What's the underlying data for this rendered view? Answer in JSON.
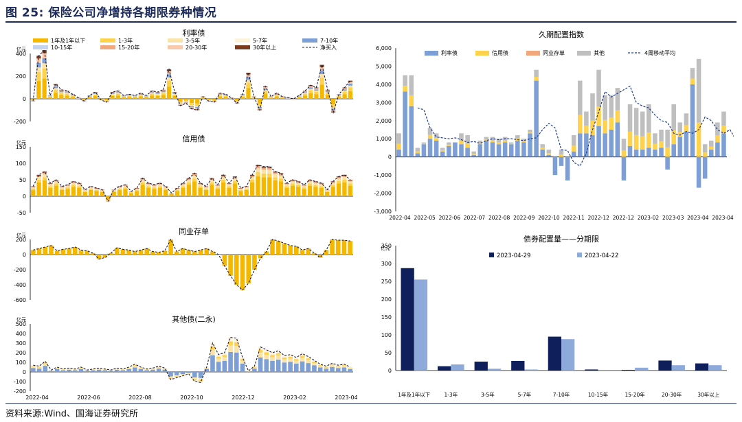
{
  "page": {
    "title": "图 25:  保险公司净增持各期限券种情况",
    "source": "资料来源:Wind、国海证券研究所"
  },
  "colors": {
    "y1": "#f5b800",
    "y1to3": "#ffd24d",
    "y3to5": "#fae3a8",
    "y5to7": "#fdf3d8",
    "y7to10": "#7d9fd6",
    "y10to15": "#c5d4ee",
    "y15to20": "#f2a67c",
    "y20to30": "#f8c9aa",
    "y30plus": "#7a3b1d",
    "net": "#1b1b3a",
    "rate": "#7d9fd6",
    "credit": "#ffd24d",
    "ncd": "#f2a67c",
    "other": "#bfbfbf",
    "ma": "#1f3a93",
    "navy": "#0f1f5c",
    "lightblue": "#8eaadb"
  },
  "chart_data": [
    {
      "id": "rate",
      "type": "bar",
      "title": "利率债",
      "unit": "亿元",
      "ylim": [
        -200,
        400
      ],
      "yticks": [
        "400",
        "200",
        "0",
        "-200"
      ],
      "legend": [
        "1年及1年以下",
        "1-3年",
        "3-5年",
        "5-7年",
        "7-10年",
        "10-15年",
        "15-20年",
        "20-30年",
        "30年以上",
        "净买入"
      ],
      "net": [
        -20,
        380,
        430,
        30,
        130,
        80,
        70,
        40,
        10,
        -20,
        30,
        60,
        -10,
        -30,
        60,
        70,
        30,
        40,
        30,
        50,
        30,
        70,
        60,
        80,
        260,
        60,
        -60,
        -40,
        -90,
        -100,
        20,
        -20,
        -30,
        50,
        40,
        10,
        -40,
        40,
        230,
        20,
        -100,
        110,
        20,
        50,
        20,
        10,
        0,
        30,
        70,
        120,
        100,
        300,
        80,
        -120,
        40,
        100,
        160
      ]
    },
    {
      "id": "credit",
      "type": "bar",
      "title": "信用债",
      "unit": "亿元",
      "ylim": [
        -50,
        150
      ],
      "yticks": [
        "150",
        "100",
        "50",
        "0",
        "-50"
      ],
      "net": [
        30,
        65,
        75,
        40,
        50,
        30,
        35,
        45,
        40,
        20,
        30,
        25,
        20,
        -15,
        20,
        30,
        35,
        15,
        25,
        55,
        40,
        35,
        40,
        30,
        10,
        25,
        40,
        55,
        70,
        40,
        30,
        55,
        35,
        65,
        40,
        60,
        25,
        30,
        65,
        95,
        90,
        90,
        75,
        70,
        40,
        50,
        45,
        35,
        50,
        45,
        40,
        20,
        45,
        60,
        65,
        50
      ]
    },
    {
      "id": "ncd",
      "type": "bar",
      "title": "同业存单",
      "unit": "亿元",
      "ylim": [
        -600,
        200
      ],
      "yticks": [
        "200",
        "0",
        "-200",
        "-400",
        "-600"
      ],
      "net": [
        60,
        80,
        100,
        120,
        50,
        70,
        80,
        100,
        60,
        50,
        20,
        -60,
        -40,
        20,
        90,
        70,
        60,
        40,
        60,
        80,
        40,
        30,
        50,
        200,
        40,
        80,
        60,
        40,
        60,
        80,
        40,
        0,
        -150,
        -280,
        -400,
        -470,
        -380,
        -200,
        -50,
        40,
        200,
        180,
        150,
        120,
        110,
        60,
        80,
        20,
        -40,
        60,
        200,
        190,
        190,
        180
      ]
    },
    {
      "id": "other",
      "type": "bar",
      "title": "其他债(二永)",
      "unit": "亿元",
      "ylim": [
        -200,
        500
      ],
      "yticks": [
        "500",
        "400",
        "300",
        "200",
        "100",
        "0",
        "-100",
        "-200"
      ],
      "xticks": [
        "2022-04",
        "2022-06",
        "2022-08",
        "2022-10",
        "2022-12",
        "2023-02",
        "2023-04"
      ],
      "net": [
        70,
        60,
        110,
        20,
        50,
        30,
        40,
        30,
        50,
        20,
        30,
        40,
        30,
        20,
        40,
        30,
        50,
        80,
        50,
        30,
        40,
        60,
        40,
        -80,
        -60,
        -40,
        -20,
        -100,
        -110,
        50,
        300,
        180,
        200,
        360,
        350,
        150,
        10,
        60,
        260,
        230,
        200,
        220,
        170,
        180,
        150,
        190,
        160,
        120,
        80,
        60,
        90,
        70,
        80,
        50
      ]
    },
    {
      "id": "duration",
      "type": "bar",
      "title": "久期配置指数",
      "ylim": [
        -3000,
        6000
      ],
      "yticks": [
        "6,000",
        "5,000",
        "4,000",
        "3,000",
        "2,000",
        "1,000",
        "0",
        "-1,000",
        "-2,000",
        "-3,000"
      ],
      "legend": [
        "利率债",
        "信用债",
        "同业存单",
        "其他",
        "4周移动平均"
      ],
      "xticks": [
        "2022-04",
        "2022-05",
        "2022-06",
        "2022-07",
        "2022-08",
        "2022-09",
        "2022-10",
        "2022-11",
        "2022-12",
        "2022-12",
        "2023-02",
        "2023-03",
        "2023-04",
        "2023-04"
      ],
      "ma": [
        null,
        null,
        null,
        2700,
        2600,
        1600,
        1100,
        1050,
        1000,
        1050,
        950,
        800,
        850,
        750,
        900,
        1000,
        950,
        1000,
        1000,
        950,
        900,
        1000,
        1050,
        1500,
        1850,
        1600,
        400,
        350,
        -300,
        -500,
        200,
        1500,
        2500,
        3600,
        3300,
        3500,
        3700,
        3900,
        3000,
        2800,
        2700,
        2300,
        2000,
        1900,
        1300,
        1200,
        1400,
        1300,
        1500,
        2200,
        2000,
        1500,
        1300,
        1500,
        900
      ],
      "totals": [
        1300,
        4500,
        4500,
        500,
        800,
        1600,
        1300,
        500,
        800,
        800,
        1300,
        1200,
        300,
        900,
        1100,
        1100,
        1000,
        1100,
        800,
        1200,
        1000,
        1500,
        4800,
        700,
        400,
        -1000,
        400,
        -1500,
        1200,
        4200,
        2500,
        3500,
        4800,
        3400,
        3400,
        3800,
        1000,
        2900,
        2700,
        2500,
        2900,
        1300,
        1500,
        1500,
        2900,
        1900,
        2400,
        4900,
        5400,
        700,
        900,
        1900,
        2500
      ],
      "rate": [
        400,
        3600,
        2800,
        200,
        700,
        1000,
        900,
        300,
        600,
        800,
        700,
        500,
        100,
        700,
        900,
        800,
        700,
        800,
        700,
        900,
        800,
        1300,
        4200,
        400,
        100,
        -1000,
        -500,
        -1300,
        300,
        1300,
        1300,
        1200,
        1700,
        1300,
        1500,
        1900,
        -1300,
        600,
        400,
        400,
        500,
        400,
        500,
        -700,
        700,
        1100,
        1400,
        4000,
        -1700,
        -1200,
        400,
        800,
        1300
      ]
    },
    {
      "id": "allocation",
      "type": "bar",
      "title": "债券配置量——分期限",
      "unit": "亿元",
      "ylim": [
        0,
        350
      ],
      "yticks": [
        "350",
        "300",
        "250",
        "200",
        "150",
        "100",
        "50",
        "0"
      ],
      "categories": [
        "1年及1年以下",
        "1-3年",
        "3-5年",
        "5-7年",
        "7-10年",
        "10-15年",
        "15-20年",
        "20-30年",
        "30年以上"
      ],
      "series": [
        {
          "name": "2023-04-29",
          "values": [
            287,
            12,
            25,
            27,
            95,
            3,
            2,
            28,
            20
          ]
        },
        {
          "name": "2023-04-22",
          "values": [
            255,
            17,
            5,
            3,
            88,
            2,
            8,
            15,
            15
          ]
        }
      ]
    }
  ]
}
